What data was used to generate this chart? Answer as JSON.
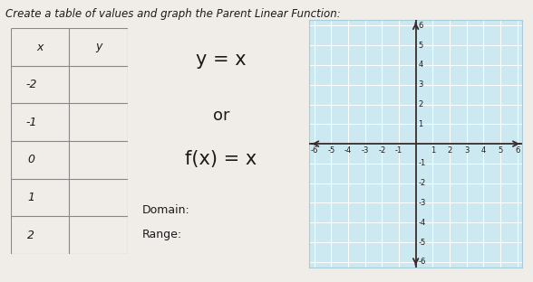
{
  "title_text": "Create a table of values and graph the Parent Linear Function:",
  "table_x_values": [
    "-2",
    "-1",
    "0",
    "1",
    "2"
  ],
  "table_headers": [
    "x",
    "y"
  ],
  "equation_line1": "y = x",
  "equation_line2": "or",
  "equation_line3": "f(x) = x",
  "domain_label": "Domain:",
  "range_label": "Range:",
  "graph_xlim": [
    -6.3,
    6.3
  ],
  "graph_ylim": [
    -6.3,
    6.3
  ],
  "graph_xticks": [
    -6,
    -5,
    -4,
    -3,
    -2,
    -1,
    1,
    2,
    3,
    4,
    5,
    6
  ],
  "graph_yticks": [
    -6,
    -5,
    -4,
    -3,
    -2,
    -1,
    1,
    2,
    3,
    4,
    5,
    6
  ],
  "graph_bg": "#cce8f0",
  "grid_color": "#ffffff",
  "axis_color": "#3a2a2a",
  "table_border_color": "#888888",
  "text_color": "#1a1a1a",
  "bg_color": "#f0ede8",
  "font_size_title": 8.5,
  "font_size_eq": 15,
  "font_size_or": 13,
  "font_size_table": 9,
  "font_size_domain": 9,
  "graph_tick_fontsize": 6.0
}
